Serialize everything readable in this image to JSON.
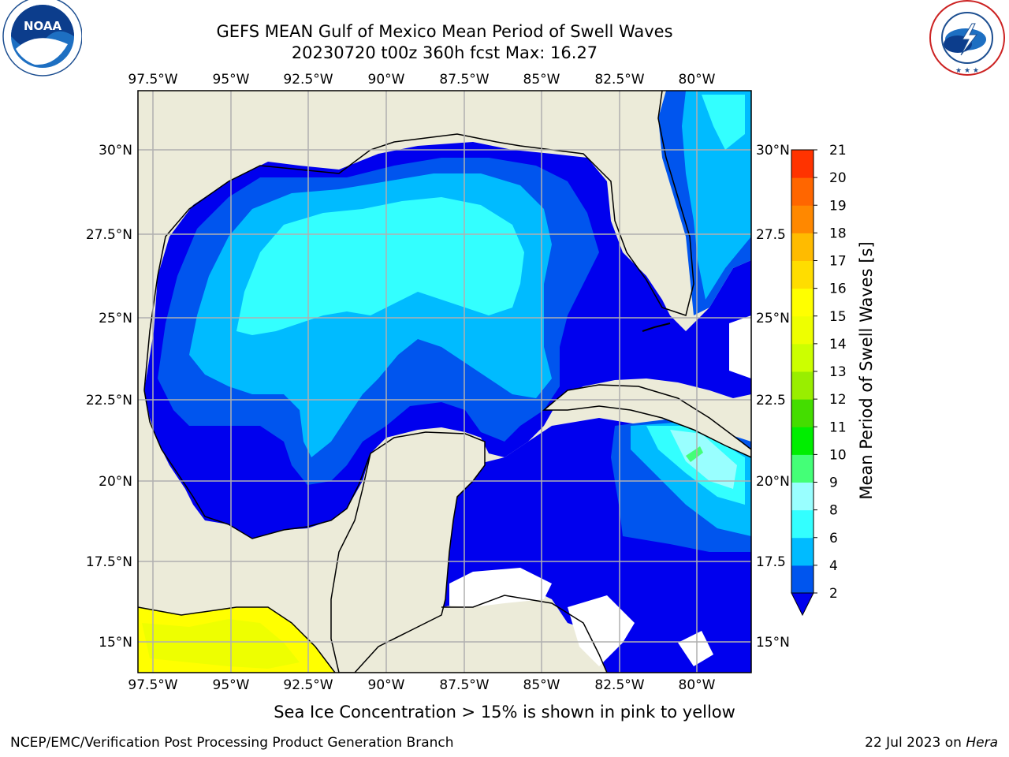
{
  "header": {
    "title_line1": "GEFS MEAN Gulf of Mexico Mean Period of Swell Waves",
    "title_line2": "20230720 t00z 360h fcst   Max: 16.27"
  },
  "logos": {
    "left": {
      "name": "noaa-logo",
      "text_top": "NOAA",
      "ring_text": "NATIONAL OCEANIC AND ATMOSPHERIC ADMINISTRATION",
      "ring_text_bottom": "U.S. DEPARTMENT OF COMMERCE"
    },
    "right": {
      "name": "nws-logo",
      "ring_text": "NATIONAL WEATHER SERVICE"
    }
  },
  "map": {
    "lon_ticks": [
      "97.5°W",
      "95°W",
      "92.5°W",
      "90°W",
      "87.5°W",
      "85°W",
      "82.5°W",
      "80°W"
    ],
    "lat_ticks_left": [
      "30°N",
      "27.5°N",
      "25°N",
      "22.5°N",
      "20°N",
      "17.5°N",
      "15°N"
    ],
    "lat_ticks_right": [
      "30°N",
      "27.5",
      "25°N",
      "22.5",
      "20°N",
      "17.5",
      "15°N"
    ],
    "colors": {
      "land": "#ecebd9",
      "grid": "#b0b0b0",
      "coast": "#000000"
    }
  },
  "colorbar": {
    "label": "Mean Period of Swell Waves [s]",
    "ticks": [
      "2",
      "4",
      "6",
      "8",
      "9",
      "10",
      "11",
      "12",
      "13",
      "14",
      "15",
      "16",
      "17",
      "18",
      "19",
      "20",
      "21"
    ],
    "colors": [
      "#0055ee",
      "#00bbff",
      "#33ffff",
      "#99ffff",
      "#44ff77",
      "#00ee00",
      "#44dd00",
      "#99ee00",
      "#ccff00",
      "#eeff00",
      "#ffff00",
      "#ffdd00",
      "#ffbb00",
      "#ff8800",
      "#ff6600",
      "#ff3300"
    ],
    "extend_color": "#0000ee"
  },
  "footer": {
    "note": "Sea Ice Concentration > 15% is shown in pink to yellow",
    "left": "NCEP/EMC/Verification Post Processing Product Generation Branch",
    "right_date": "22 Jul 2023 on ",
    "right_host": "Hera"
  }
}
